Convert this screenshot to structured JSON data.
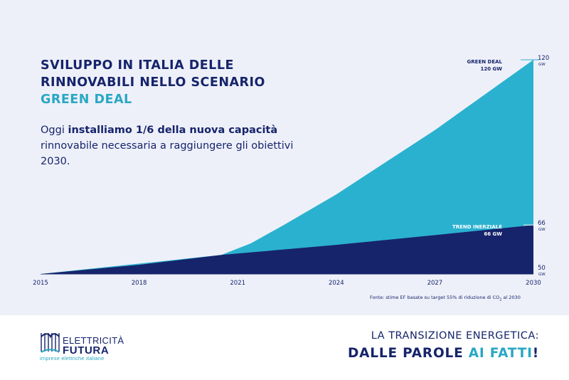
{
  "title": {
    "line1": "SVILUPPO IN ITALIA DELLE",
    "line2": "RINNOVABILI NELLO SCENARIO",
    "line3": "GREEN DEAL"
  },
  "lede": {
    "part1": "Oggi ",
    "bold": "installiamo 1/6 della nuova capacità",
    "part2": " rinnovabile necessaria a raggiungere gli obiettivi 2030."
  },
  "chart_data": {
    "type": "area",
    "x_ticks": [
      "2015",
      "2018",
      "2021",
      "2024",
      "2027",
      "2030"
    ],
    "xlim": [
      2015,
      2030
    ],
    "ylim": [
      50,
      120
    ],
    "series": [
      {
        "name": "GREEN DEAL",
        "color": "#2ab1cf",
        "points": [
          [
            2015,
            50
          ],
          [
            2020.5,
            56.2
          ],
          [
            2021.4,
            60
          ],
          [
            2022.4,
            66
          ],
          [
            2024,
            76
          ],
          [
            2027,
            97
          ],
          [
            2030,
            120
          ]
        ]
      },
      {
        "name": "TREND INERZIALE",
        "color": "#16246b",
        "points": [
          [
            2015,
            50
          ],
          [
            2018,
            53
          ],
          [
            2020.5,
            56.2
          ],
          [
            2024,
            59.5
          ],
          [
            2027,
            62.7
          ],
          [
            2030,
            66
          ]
        ]
      }
    ],
    "end_labels": [
      {
        "series": "GREEN DEAL",
        "label1": "GREEN DEAL",
        "label2": "120 GW",
        "axis_value": "120",
        "unit": "GW"
      },
      {
        "series": "TREND INERZIALE",
        "label1": "TREND INERZIALE",
        "label2": "66 GW",
        "axis_value": "66",
        "unit": "GW"
      }
    ],
    "start_label": {
      "axis_value": "50",
      "unit": "GW"
    }
  },
  "source": {
    "pre": "Fonte: stime EF basate su target 55% di riduzione di CO",
    "sub": "2",
    "post": " al 2030"
  },
  "logo": {
    "top": "ELETTRICITÀ",
    "bottom": "FUTURA",
    "tagline": "imprese elettriche italiane"
  },
  "slogan": {
    "line1": "LA TRANSIZIONE ENERGETICA:",
    "line2a": "DALLE PAROLE ",
    "line2b": "AI FATTI",
    "line2c": "!"
  },
  "colors": {
    "navy": "#16246b",
    "cyan": "#2ab1cf",
    "panel": "#eef0f9"
  }
}
